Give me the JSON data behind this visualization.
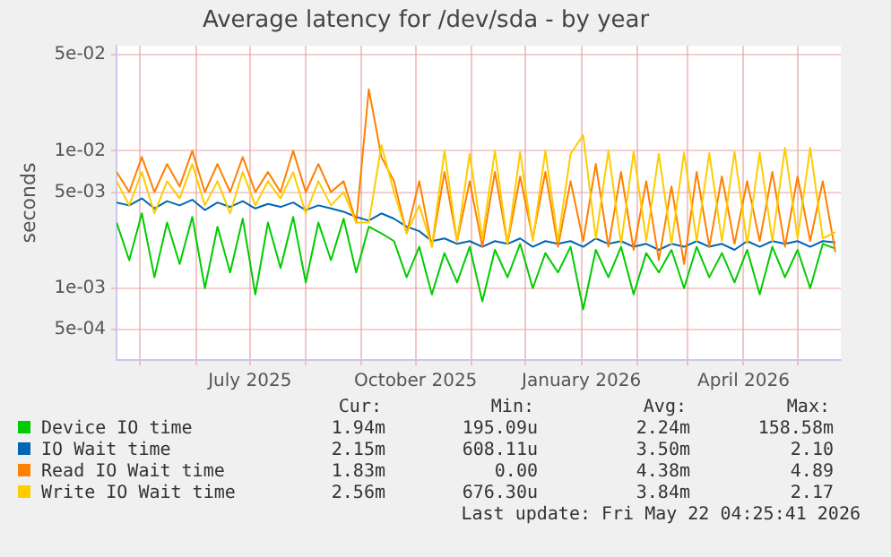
{
  "chart_data": {
    "type": "line",
    "title": "Average latency for /dev/sda - by year",
    "ylabel": "seconds",
    "log": "y",
    "grid": true,
    "legend": "bottom",
    "marker": "none",
    "line_style": "solid",
    "x": [
      "2025-04-18",
      "2025-04-25",
      "2025-05-02",
      "2025-05-09",
      "2025-05-16",
      "2025-05-23",
      "2025-05-30",
      "2025-06-06",
      "2025-06-13",
      "2025-06-20",
      "2025-06-27",
      "2025-07-04",
      "2025-07-11",
      "2025-07-18",
      "2025-07-25",
      "2025-08-01",
      "2025-08-08",
      "2025-08-15",
      "2025-08-22",
      "2025-08-29",
      "2025-09-05",
      "2025-09-12",
      "2025-09-19",
      "2025-09-26",
      "2025-10-03",
      "2025-10-10",
      "2025-10-17",
      "2025-10-24",
      "2025-10-31",
      "2025-11-07",
      "2025-11-14",
      "2025-11-21",
      "2025-11-28",
      "2025-12-05",
      "2025-12-12",
      "2025-12-19",
      "2025-12-26",
      "2026-01-02",
      "2026-01-09",
      "2026-01-16",
      "2026-01-23",
      "2026-01-30",
      "2026-02-06",
      "2026-02-13",
      "2026-02-20",
      "2026-02-27",
      "2026-03-06",
      "2026-03-13",
      "2026-03-20",
      "2026-03-27",
      "2026-04-03",
      "2026-04-10",
      "2026-04-17",
      "2026-04-24",
      "2026-05-01",
      "2026-05-08",
      "2026-05-15",
      "2026-05-22"
    ],
    "xlim": [
      "2025-04-18",
      "2026-05-25"
    ],
    "xticks": [
      {
        "value": "2025-05-01",
        "label": null
      },
      {
        "value": "2025-06-01",
        "label": null
      },
      {
        "value": "2025-07-01",
        "label": "July 2025"
      },
      {
        "value": "2025-08-01",
        "label": null
      },
      {
        "value": "2025-09-01",
        "label": null
      },
      {
        "value": "2025-10-01",
        "label": "October 2025"
      },
      {
        "value": "2025-11-01",
        "label": null
      },
      {
        "value": "2025-12-01",
        "label": null
      },
      {
        "value": "2026-01-01",
        "label": "January 2026"
      },
      {
        "value": "2026-02-01",
        "label": null
      },
      {
        "value": "2026-03-01",
        "label": null
      },
      {
        "value": "2026-04-01",
        "label": "April 2026"
      },
      {
        "value": "2026-05-01",
        "label": null
      }
    ],
    "ylim": [
      0.00032,
      0.058
    ],
    "yticks": [
      {
        "value": 0.0005,
        "label": "5e-04"
      },
      {
        "value": 0.001,
        "label": "1e-03"
      },
      {
        "value": 0.005,
        "label": "5e-03"
      },
      {
        "value": 0.01,
        "label": "1e-02"
      },
      {
        "value": 0.05,
        "label": "5e-02"
      }
    ],
    "series": [
      {
        "name": "Device IO time",
        "color": "#00cc00",
        "values": [
          0.003,
          0.0016,
          0.0035,
          0.0012,
          0.003,
          0.0015,
          0.0033,
          0.001,
          0.0028,
          0.0013,
          0.0032,
          0.0009,
          0.003,
          0.0014,
          0.0033,
          0.0011,
          0.003,
          0.0016,
          0.0032,
          0.0013,
          0.0028,
          0.0025,
          0.0022,
          0.0012,
          0.002,
          0.0009,
          0.0018,
          0.0011,
          0.002,
          0.0008,
          0.0019,
          0.0012,
          0.0021,
          0.001,
          0.0018,
          0.0013,
          0.002,
          0.0007,
          0.0019,
          0.0012,
          0.002,
          0.0009,
          0.0018,
          0.0013,
          0.0019,
          0.001,
          0.002,
          0.0012,
          0.0018,
          0.0011,
          0.0019,
          0.0009,
          0.002,
          0.0012,
          0.0019,
          0.001,
          0.0021,
          0.00194
        ]
      },
      {
        "name": "IO Wait time",
        "color": "#0066b3",
        "values": [
          0.0042,
          0.004,
          0.0045,
          0.0038,
          0.0043,
          0.004,
          0.0044,
          0.0037,
          0.0042,
          0.0039,
          0.0043,
          0.0038,
          0.0041,
          0.0039,
          0.0042,
          0.0037,
          0.004,
          0.0038,
          0.0036,
          0.0033,
          0.0031,
          0.0035,
          0.0032,
          0.0028,
          0.0026,
          0.0022,
          0.0023,
          0.0021,
          0.0022,
          0.002,
          0.0022,
          0.0021,
          0.0023,
          0.002,
          0.0022,
          0.0021,
          0.0022,
          0.002,
          0.0023,
          0.0021,
          0.0022,
          0.002,
          0.0021,
          0.0019,
          0.0021,
          0.002,
          0.0022,
          0.002,
          0.0021,
          0.0019,
          0.0022,
          0.002,
          0.0022,
          0.0021,
          0.0022,
          0.002,
          0.0022,
          0.00215
        ]
      },
      {
        "name": "Read IO Wait time",
        "color": "#ff8000",
        "values": [
          0.007,
          0.005,
          0.009,
          0.005,
          0.008,
          0.0055,
          0.01,
          0.005,
          0.008,
          0.005,
          0.009,
          0.005,
          0.007,
          0.005,
          0.01,
          0.005,
          0.008,
          0.005,
          0.006,
          0.003,
          0.028,
          0.009,
          0.006,
          0.0025,
          0.006,
          0.002,
          0.007,
          0.0022,
          0.006,
          0.002,
          0.007,
          0.0021,
          0.0065,
          0.0023,
          0.007,
          0.002,
          0.006,
          0.0022,
          0.008,
          0.002,
          0.007,
          0.0019,
          0.006,
          0.0016,
          0.0055,
          0.0015,
          0.007,
          0.002,
          0.0065,
          0.0021,
          0.006,
          0.0022,
          0.007,
          0.002,
          0.0065,
          0.0022,
          0.006,
          0.00183
        ]
      },
      {
        "name": "Write IO Wait time",
        "color": "#ffcc00",
        "values": [
          0.006,
          0.004,
          0.007,
          0.0035,
          0.006,
          0.0045,
          0.008,
          0.004,
          0.006,
          0.0035,
          0.007,
          0.004,
          0.006,
          0.0045,
          0.007,
          0.0035,
          0.006,
          0.004,
          0.005,
          0.003,
          0.003,
          0.011,
          0.005,
          0.0025,
          0.004,
          0.002,
          0.01,
          0.0022,
          0.0095,
          0.0023,
          0.01,
          0.0021,
          0.0098,
          0.0022,
          0.01,
          0.0022,
          0.0095,
          0.013,
          0.0023,
          0.01,
          0.0021,
          0.0098,
          0.0022,
          0.0095,
          0.0021,
          0.0097,
          0.0022,
          0.0096,
          0.0022,
          0.0098,
          0.0021,
          0.0097,
          0.0022,
          0.0105,
          0.0023,
          0.0105,
          0.0023,
          0.00256
        ]
      }
    ],
    "annotations": [
      "Cur:",
      "Min:",
      "Avg:",
      "Max:",
      "1.94m",
      "195.09u",
      "2.24m",
      "158.58m",
      "2.15m",
      "608.11u",
      "3.50m",
      "2.10",
      "1.83m",
      "0.00",
      "4.38m",
      "4.89",
      "2.56m",
      "676.30u",
      "3.84m",
      "2.17",
      "Last update: Fri May 22 04:25:41 2026"
    ]
  }
}
